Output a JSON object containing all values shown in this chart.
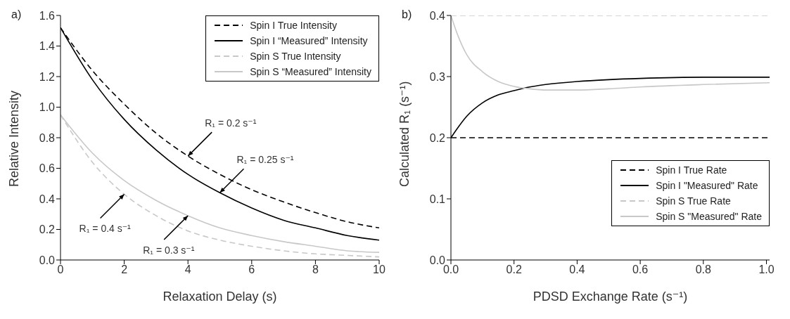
{
  "chart_data": [
    {
      "type": "line",
      "title": "a)",
      "xlabel": "Relaxation Delay (s)",
      "ylabel": "Relative Intensity",
      "x": [
        0,
        1,
        2,
        3,
        4,
        5,
        6,
        7,
        8,
        9,
        10
      ],
      "series": [
        {
          "name": "Spin I True Intensity",
          "color": "#000000",
          "line_style": "dashed",
          "values": [
            1.52,
            1.24,
            1.02,
            0.83,
            0.68,
            0.56,
            0.46,
            0.38,
            0.31,
            0.25,
            0.21
          ]
        },
        {
          "name": "Spin I “Measured” Intensity",
          "color": "#000000",
          "line_style": "solid",
          "values": [
            1.52,
            1.18,
            0.92,
            0.72,
            0.56,
            0.44,
            0.34,
            0.26,
            0.21,
            0.16,
            0.13
          ]
        },
        {
          "name": "Spin S True Intensity",
          "color": "#c8c8c8",
          "line_style": "dashed",
          "values": [
            0.95,
            0.64,
            0.43,
            0.29,
            0.19,
            0.13,
            0.09,
            0.06,
            0.04,
            0.03,
            0.02
          ]
        },
        {
          "name": "Spin S “Measured” Intensity",
          "color": "#c8c8c8",
          "line_style": "solid",
          "values": [
            0.95,
            0.7,
            0.52,
            0.39,
            0.29,
            0.21,
            0.16,
            0.12,
            0.09,
            0.06,
            0.05
          ]
        }
      ],
      "xlim": [
        0,
        10
      ],
      "xticks": [
        0,
        2,
        4,
        6,
        8,
        10
      ],
      "ylim": [
        0,
        1.6
      ],
      "yticks": [
        {
          "value": 0,
          "label": "0.0"
        },
        {
          "value": 0.2,
          "label": "0.2"
        },
        {
          "value": 0.4,
          "label": "0.4"
        },
        {
          "value": 0.6,
          "label": "0.6"
        },
        {
          "value": 0.8,
          "label": "0.8"
        },
        {
          "value": 1,
          "label": "1.0"
        },
        {
          "value": 1.2,
          "label": "1.2"
        },
        {
          "value": 1.4,
          "label": "1.4"
        },
        {
          "value": 1.6,
          "label": "1.6"
        }
      ],
      "annotations": [
        {
          "text": "R₁ = 0.2 s⁻¹",
          "x": 4,
          "y": 0.68
        },
        {
          "text": "R₁ = 0.25 s⁻¹",
          "x": 5,
          "y": 0.44
        },
        {
          "text": "R₁ = 0.4 s⁻¹",
          "x": 2,
          "y": 0.43
        },
        {
          "text": "R₁ = 0.3 s⁻¹",
          "x": 4,
          "y": 0.29
        }
      ],
      "grid": false,
      "legend": "top right",
      "marker": "none"
    },
    {
      "type": "line",
      "title": "b)",
      "xlabel": "PDSD Exchange Rate (s⁻¹)",
      "ylabel": "Calculated R₁ (s⁻¹)",
      "series": [
        {
          "name": "Spin I True Rate",
          "color": "#000000",
          "line_style": "dashed",
          "x": [
            0,
            1.01
          ],
          "values": [
            0.2,
            0.2
          ]
        },
        {
          "name": "Spin I \"Measured\" Rate",
          "color": "#000000",
          "line_style": "solid",
          "x": [
            0,
            0.02,
            0.05,
            0.1,
            0.15,
            0.2,
            0.25,
            0.3,
            0.4,
            0.5,
            0.6,
            0.8,
            1.01
          ],
          "values": [
            0.2,
            0.215,
            0.235,
            0.257,
            0.27,
            0.277,
            0.283,
            0.287,
            0.292,
            0.295,
            0.297,
            0.299,
            0.299
          ]
        },
        {
          "name": "Spin S True Rate",
          "color": "#c8c8c8",
          "line_style": "dashed",
          "x": [
            0,
            1.01
          ],
          "values": [
            0.4,
            0.4
          ]
        },
        {
          "name": "Spin S \"Measured\" Rate",
          "color": "#c8c8c8",
          "line_style": "solid",
          "x": [
            0,
            0.02,
            0.05,
            0.1,
            0.15,
            0.2,
            0.25,
            0.3,
            0.4,
            0.5,
            0.6,
            0.8,
            1.01
          ],
          "values": [
            0.4,
            0.37,
            0.336,
            0.308,
            0.292,
            0.284,
            0.28,
            0.278,
            0.278,
            0.28,
            0.283,
            0.287,
            0.29
          ]
        }
      ],
      "xlim": [
        0,
        1.01
      ],
      "xticks": [
        {
          "value": 0,
          "label": "0.0"
        },
        {
          "value": 0.2,
          "label": "0.2"
        },
        {
          "value": 0.4,
          "label": "0.4"
        },
        {
          "value": 0.6,
          "label": "0.6"
        },
        {
          "value": 0.8,
          "label": "0.8"
        },
        {
          "value": 1,
          "label": "1.0"
        }
      ],
      "ylim": [
        0,
        0.4
      ],
      "yticks": [
        {
          "value": 0,
          "label": "0.0"
        },
        {
          "value": 0.1,
          "label": "0.1"
        },
        {
          "value": 0.2,
          "label": "0.2"
        },
        {
          "value": 0.3,
          "label": "0.3"
        },
        {
          "value": 0.4,
          "label": "0.4"
        }
      ],
      "grid": false,
      "legend": "bottom right",
      "marker": "none"
    }
  ]
}
